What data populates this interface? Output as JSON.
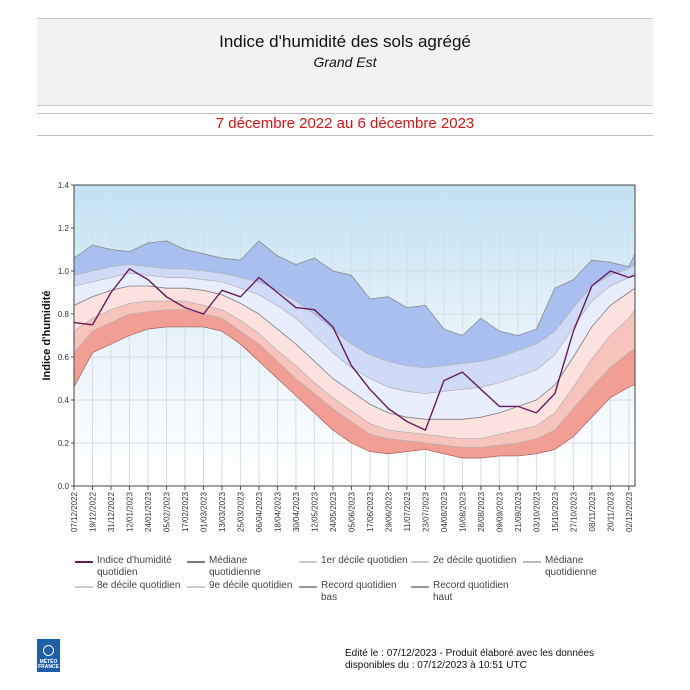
{
  "header": {
    "title": "Indice d'humidité des sols agrégé",
    "subtitle": "Grand Est",
    "period": "7 décembre 2022 au 6 décembre 2023"
  },
  "chart_data": {
    "type": "area",
    "ylabel": "Indice d'humidité",
    "xlabel": "",
    "ylim": [
      0,
      1.4
    ],
    "yticks": [
      "0.0",
      "0.2",
      "0.4",
      "0.6",
      "0.8",
      "1.0",
      "1.2",
      "1.4"
    ],
    "grid": true,
    "x_tick_labels": [
      "07/12/2022",
      "19/12/2022",
      "31/12/2022",
      "12/01/2023",
      "24/01/2023",
      "05/02/2023",
      "17/02/2023",
      "01/03/2023",
      "13/03/2023",
      "25/03/2023",
      "06/04/2023",
      "18/04/2023",
      "30/04/2023",
      "12/05/2023",
      "24/05/2023",
      "05/06/2023",
      "17/06/2023",
      "29/06/2023",
      "11/07/2023",
      "23/07/2023",
      "04/08/2023",
      "16/08/2023",
      "28/08/2023",
      "09/09/2023",
      "21/09/2023",
      "03/10/2023",
      "15/10/2023",
      "27/10/2023",
      "08/11/2023",
      "20/11/2023",
      "02/12/2023"
    ],
    "x_day_step": 12,
    "x_days_total": 364,
    "series_x_days": [
      0,
      12,
      24,
      36,
      48,
      60,
      72,
      84,
      96,
      108,
      120,
      132,
      144,
      156,
      168,
      180,
      192,
      204,
      216,
      228,
      240,
      252,
      264,
      276,
      288,
      300,
      312,
      324,
      336,
      348,
      360,
      364
    ],
    "series": [
      {
        "name": "Record quotidien bas",
        "values": [
          0.46,
          0.62,
          0.66,
          0.7,
          0.73,
          0.74,
          0.74,
          0.74,
          0.72,
          0.66,
          0.58,
          0.5,
          0.42,
          0.34,
          0.26,
          0.2,
          0.16,
          0.15,
          0.16,
          0.17,
          0.15,
          0.13,
          0.13,
          0.14,
          0.14,
          0.15,
          0.17,
          0.23,
          0.32,
          0.41,
          0.46,
          0.47
        ]
      },
      {
        "name": "9e décile quotidien",
        "values": [
          0.62,
          0.72,
          0.76,
          0.8,
          0.81,
          0.82,
          0.82,
          0.8,
          0.78,
          0.72,
          0.66,
          0.58,
          0.5,
          0.43,
          0.36,
          0.3,
          0.24,
          0.22,
          0.21,
          0.2,
          0.19,
          0.18,
          0.18,
          0.19,
          0.2,
          0.22,
          0.26,
          0.36,
          0.46,
          0.55,
          0.62,
          0.64
        ]
      },
      {
        "name": "8e décile quotidien",
        "values": [
          0.72,
          0.78,
          0.82,
          0.85,
          0.86,
          0.86,
          0.86,
          0.84,
          0.82,
          0.77,
          0.71,
          0.63,
          0.56,
          0.48,
          0.41,
          0.35,
          0.29,
          0.26,
          0.25,
          0.24,
          0.23,
          0.22,
          0.22,
          0.24,
          0.26,
          0.28,
          0.34,
          0.46,
          0.59,
          0.7,
          0.78,
          0.82
        ]
      },
      {
        "name": "Médiane quotidienne",
        "values": [
          0.84,
          0.88,
          0.91,
          0.93,
          0.93,
          0.92,
          0.92,
          0.91,
          0.89,
          0.85,
          0.8,
          0.73,
          0.66,
          0.58,
          0.5,
          0.44,
          0.38,
          0.34,
          0.32,
          0.31,
          0.31,
          0.31,
          0.32,
          0.34,
          0.37,
          0.4,
          0.47,
          0.6,
          0.74,
          0.84,
          0.9,
          0.92
        ]
      },
      {
        "name": "2e décile quotidien",
        "values": [
          0.93,
          0.95,
          0.97,
          0.99,
          0.98,
          0.97,
          0.97,
          0.96,
          0.95,
          0.92,
          0.89,
          0.84,
          0.78,
          0.7,
          0.62,
          0.55,
          0.5,
          0.46,
          0.44,
          0.43,
          0.44,
          0.45,
          0.46,
          0.48,
          0.51,
          0.54,
          0.61,
          0.74,
          0.86,
          0.93,
          0.97,
          0.99
        ]
      },
      {
        "name": "1er décile quotidien",
        "values": [
          0.98,
          1.0,
          1.02,
          1.03,
          1.02,
          1.01,
          1.01,
          1.0,
          0.99,
          0.97,
          0.95,
          0.91,
          0.86,
          0.8,
          0.73,
          0.66,
          0.61,
          0.58,
          0.56,
          0.55,
          0.56,
          0.57,
          0.58,
          0.6,
          0.63,
          0.66,
          0.72,
          0.83,
          0.93,
          0.98,
          1.01,
          1.03
        ]
      },
      {
        "name": "Record quotidien haut",
        "values": [
          1.06,
          1.12,
          1.1,
          1.09,
          1.13,
          1.14,
          1.1,
          1.08,
          1.06,
          1.05,
          1.14,
          1.07,
          1.03,
          1.06,
          1.0,
          0.98,
          0.87,
          0.88,
          0.83,
          0.84,
          0.73,
          0.7,
          0.78,
          0.72,
          0.7,
          0.73,
          0.92,
          0.96,
          1.05,
          1.04,
          1.02,
          1.08
        ]
      },
      {
        "name": "Indice d'humidité quotidien",
        "values": [
          0.76,
          0.75,
          0.9,
          1.01,
          0.96,
          0.88,
          0.83,
          0.8,
          0.91,
          0.88,
          0.97,
          0.9,
          0.83,
          0.82,
          0.74,
          0.56,
          0.45,
          0.36,
          0.3,
          0.26,
          0.49,
          0.53,
          0.45,
          0.37,
          0.37,
          0.34,
          0.43,
          0.72,
          0.93,
          1.0,
          0.97,
          0.98
        ]
      }
    ],
    "legend": [
      "Indice d'humidité quotidien",
      "Médiane quotidienne",
      "1er décile quotidien",
      "2e décile quotidien",
      "Médiane quotidienne",
      "8e décile quotidien",
      "9e décile quotidien",
      "Record quotidien bas",
      "Record quotidien haut"
    ],
    "colors": {
      "index_line": "#6a1a5a",
      "above_high": "#c2e1f3",
      "high_d1": "#a9bff0",
      "d1_d2": "#cfdaf7",
      "d2_median": "#e8eefb",
      "median_d8": "#fbe2df",
      "d8_d9": "#f7c4bd",
      "d9_low": "#f19e94",
      "median_line": "#7d7d7d",
      "decile_line": "#b0b0b0"
    }
  },
  "footer": {
    "edited": "Edité le : 07/12/2023 - Produit élaboré avec les données disponibles du : 07/12/2023 à 10:51 UTC",
    "logo_text": "MÉTÉO FRANCE"
  }
}
